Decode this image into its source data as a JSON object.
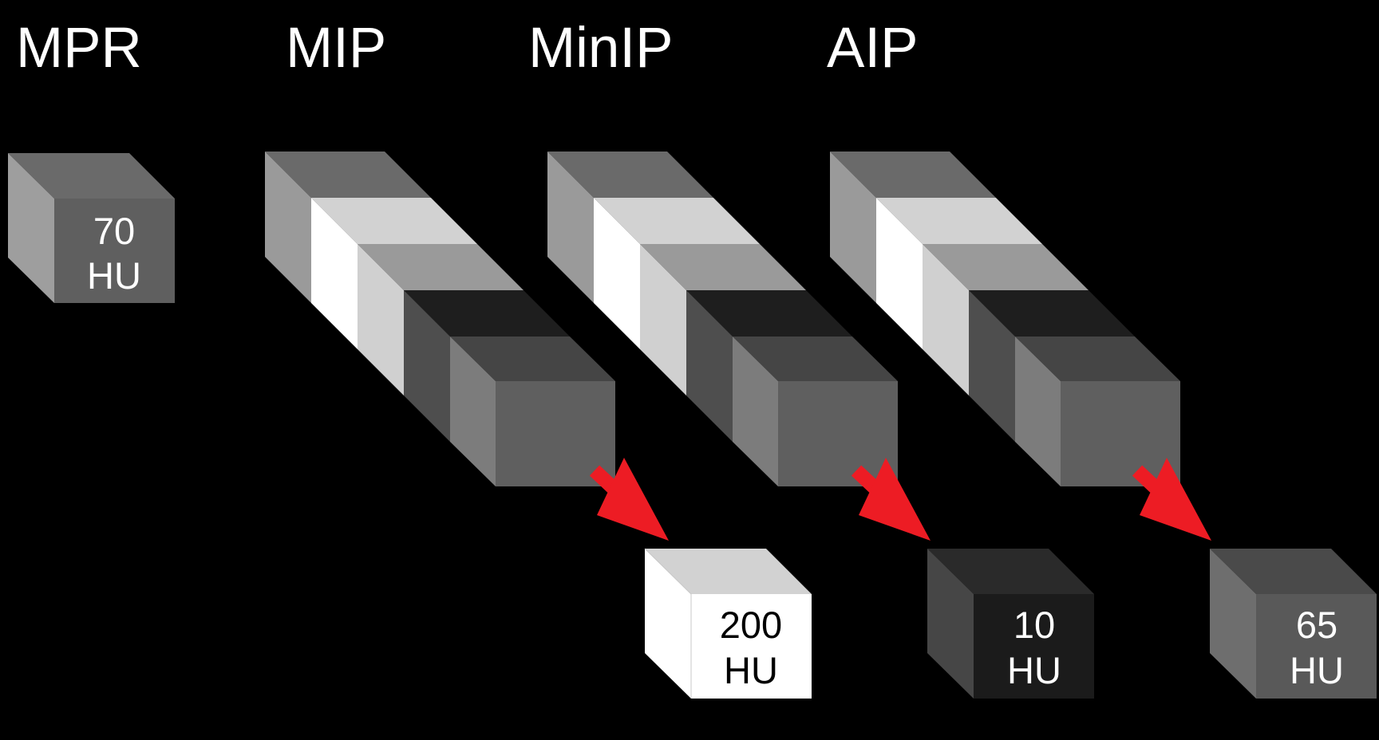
{
  "headings": {
    "mpr": "MPR",
    "mip": "MIP",
    "minip": "MinIP",
    "aip": "AIP"
  },
  "cubes": {
    "mpr": {
      "value": "70",
      "unit": "HU"
    },
    "mip": {
      "value": "200",
      "unit": "HU"
    },
    "minip": {
      "value": "10",
      "unit": "HU"
    },
    "aip": {
      "value": "65",
      "unit": "HU"
    }
  },
  "colors": {
    "background": "#000000",
    "text_light": "#ffffff",
    "text_dark": "#000000",
    "arrow": "#ed1c24",
    "voxel_gray": "#5f5f5f",
    "voxel_white": "#ffffff",
    "voxel_dark": "#1b1b1b"
  },
  "icons": {
    "arrow": "red-diagonal-arrow-icon"
  }
}
